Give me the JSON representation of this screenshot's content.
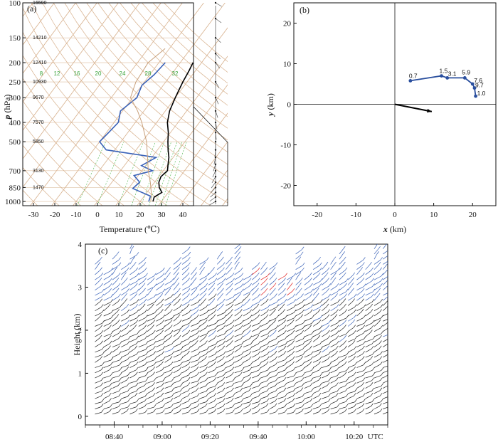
{
  "chart_data": [
    {
      "panel": "a",
      "type": "line",
      "panel_label": "(a)",
      "xlabel": "Temperature (℃)",
      "ylabel_var": "p",
      "ylabel_unit": " (hPa)",
      "xticks": [
        -30,
        -20,
        -10,
        0,
        10,
        20,
        30,
        40
      ],
      "xlim": [
        -35,
        45
      ],
      "ylim": [
        1050,
        100
      ],
      "yscale": "log",
      "yticks": [
        100,
        150,
        200,
        250,
        300,
        400,
        500,
        700,
        850,
        1000
      ],
      "height_labels": [
        {
          "p": 100,
          "h": "16590"
        },
        {
          "p": 150,
          "h": "14210"
        },
        {
          "p": 200,
          "h": "12410"
        },
        {
          "p": 250,
          "h": "10930"
        },
        {
          "p": 300,
          "h": "9670"
        },
        {
          "p": 400,
          "h": "7570"
        },
        {
          "p": 500,
          "h": "5850"
        },
        {
          "p": 700,
          "h": "3130"
        },
        {
          "p": 850,
          "h": "1470"
        }
      ],
      "mixing_ratio_labels": [
        "8",
        "12",
        "16",
        "20",
        "24",
        "28",
        "32"
      ],
      "series": [
        {
          "color": "#000000",
          "points": [
            [
              26,
              1000
            ],
            [
              25,
              950
            ],
            [
              27,
              900
            ],
            [
              24,
              850
            ],
            [
              22,
              800
            ],
            [
              21,
              750
            ],
            [
              22,
              700
            ],
            [
              20,
              650
            ],
            [
              18,
              600
            ],
            [
              15,
              550
            ],
            [
              12,
              500
            ],
            [
              9,
              450
            ],
            [
              5,
              400
            ],
            [
              2,
              350
            ],
            [
              0,
              300
            ],
            [
              -2,
              250
            ],
            [
              -3,
              220
            ],
            [
              -4,
              200
            ]
          ]
        },
        {
          "color": "#3a62b8",
          "points": [
            [
              24,
              1000
            ],
            [
              23,
              940
            ],
            [
              12,
              860
            ],
            [
              13,
              800
            ],
            [
              8,
              740
            ],
            [
              15,
              700
            ],
            [
              8,
              660
            ],
            [
              12,
              600
            ],
            [
              -14,
              550
            ],
            [
              -20,
              500
            ],
            [
              -19,
              450
            ],
            [
              -18,
              400
            ],
            [
              -21,
              350
            ],
            [
              -18,
              300
            ],
            [
              -20,
              260
            ],
            [
              -18,
              230
            ],
            [
              -17,
              200
            ]
          ]
        },
        {
          "color": "#c8a07a",
          "points": [
            [
              25,
              1000
            ],
            [
              22,
              900
            ],
            [
              18,
              800
            ],
            [
              13,
              700
            ],
            [
              8,
              600
            ],
            [
              2,
              500
            ],
            [
              -7,
              400
            ],
            [
              -13,
              350
            ],
            [
              -21,
              300
            ],
            [
              -24,
              250
            ],
            [
              -25,
              200
            ],
            [
              -22,
              170
            ]
          ]
        }
      ]
    },
    {
      "panel": "b",
      "type": "line",
      "panel_label": "(b)",
      "xlabel_var": "x",
      "xlabel_unit": " (km)",
      "ylabel_var": "y",
      "ylabel_unit": " (km)",
      "xticks": [
        -20,
        -10,
        0,
        10,
        20
      ],
      "yticks": [
        20,
        10,
        0,
        -10,
        -20
      ],
      "xlim": [
        -26,
        26
      ],
      "ylim": [
        -25,
        25
      ],
      "hodograph": [
        {
          "x": 4,
          "y": 5.8,
          "label": "0.7"
        },
        {
          "x": 12,
          "y": 7,
          "label": "1.5"
        },
        {
          "x": 13.5,
          "y": 6.5,
          "label": "3.1"
        },
        {
          "x": 18,
          "y": 6.5,
          "label": "5.9"
        },
        {
          "x": 20,
          "y": 5,
          "label": "7.6"
        },
        {
          "x": 20.5,
          "y": 4,
          "label": "9.7"
        },
        {
          "x": 20.8,
          "y": 2,
          "label": "1.0"
        }
      ],
      "storm_motion": {
        "x": 9.5,
        "y": -1.8
      }
    },
    {
      "panel": "c",
      "type": "scatter",
      "panel_label": "(c)",
      "ylabel": "Height (km)",
      "yticks": [
        0,
        1,
        2,
        3,
        4
      ],
      "ylim": [
        -0.2,
        4
      ],
      "xticks": [
        "08:40",
        "09:00",
        "09:20",
        "09:40",
        "10:00",
        "10:20"
      ],
      "x_unit_label": "UTC",
      "time_start": "08:28",
      "time_end": "10:34",
      "colors": {
        "low": "#222222",
        "mid": "#3a62b8",
        "high": "#e02020"
      }
    }
  ]
}
